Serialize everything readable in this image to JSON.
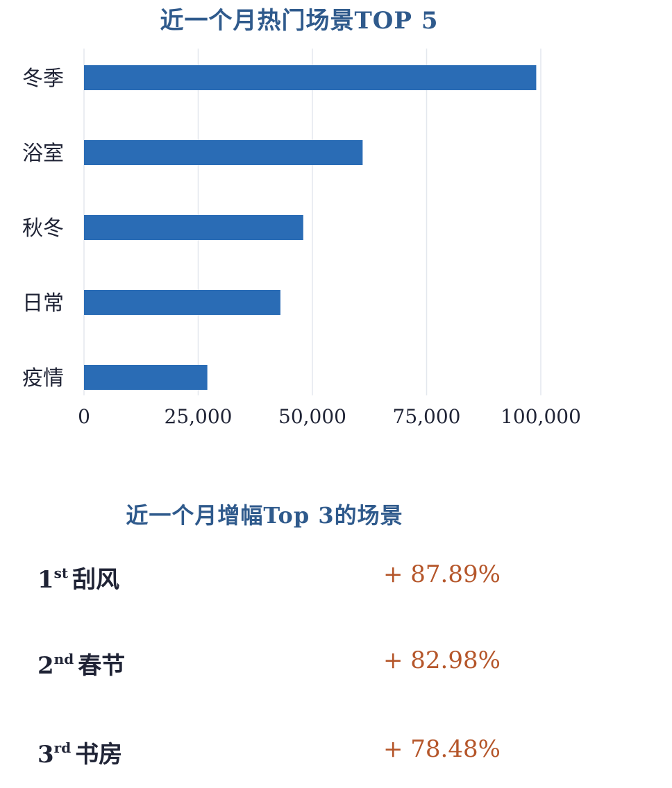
{
  "chart_data": {
    "type": "bar",
    "orientation": "horizontal",
    "title": "近一个月热门场景TOP 5",
    "categories": [
      "冬季",
      "浴室",
      "秋冬",
      "日常",
      "疫情"
    ],
    "values": [
      99000,
      61000,
      48000,
      43000,
      27000
    ],
    "xlim": [
      0,
      100000
    ],
    "xticks": [
      "0",
      "25,000",
      "50,000",
      "75,000",
      "100,000"
    ],
    "grid": true,
    "bar_color": "#2a6cb5",
    "grid_color": "#e3e7ee"
  },
  "growth": {
    "title": "近一个月增幅Top 3的场景",
    "items": [
      {
        "num": "1",
        "suffix": "st",
        "name": "刮风",
        "value": "+ 87.89%"
      },
      {
        "num": "2",
        "suffix": "nd",
        "name": "春节",
        "value": "+ 82.98%"
      },
      {
        "num": "3",
        "suffix": "rd",
        "name": "书房",
        "value": "+ 78.48%"
      }
    ],
    "value_color": "#b5562a"
  }
}
